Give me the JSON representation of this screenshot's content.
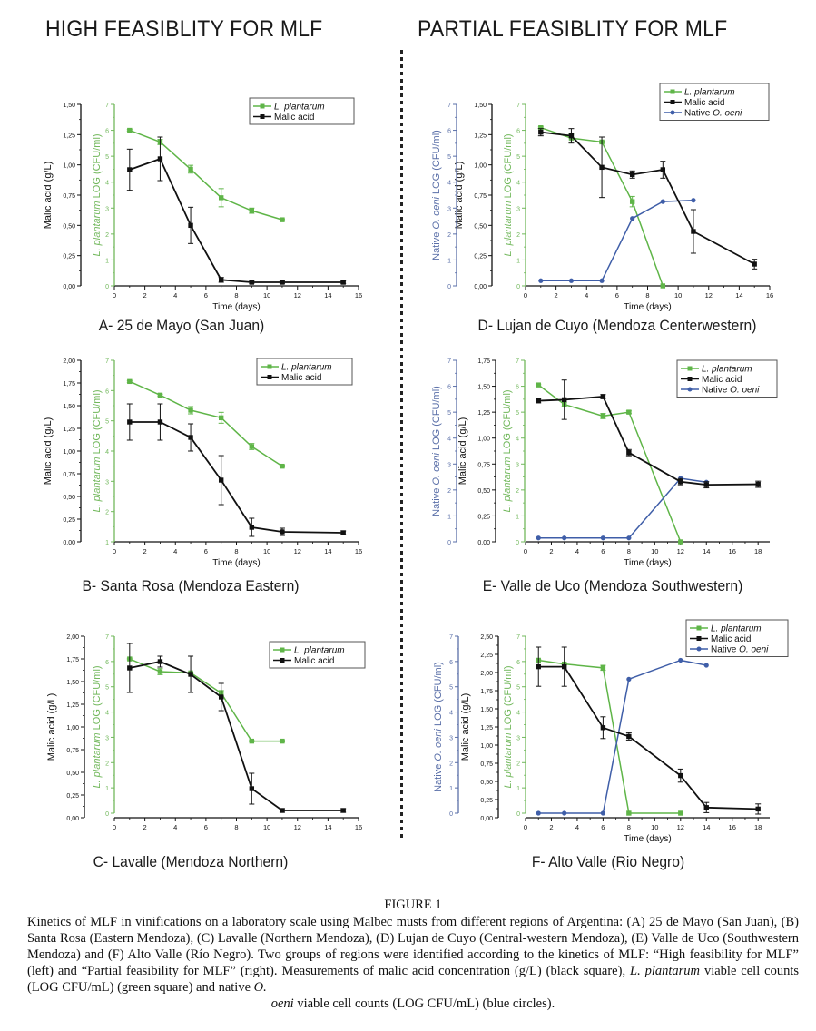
{
  "headers": {
    "left": "HIGH FEASIBLITY FOR MLF",
    "right": "PARTIAL FEASIBLITY FOR MLF"
  },
  "colors": {
    "malic": "#111111",
    "lplantarum": "#5fb548",
    "ooeni": "#3f5ea8",
    "green_axis": "#72b85c",
    "blue_axis": "#5a6fa8"
  },
  "caption": {
    "figure_label": "FIGURE 1",
    "text_1": "Kinetics of MLF in vinifications on a laboratory scale using Malbec musts from different regions of Argentina: (A) 25 de Mayo (San Juan), (B) Santa Rosa (Eastern Mendoza), (C) Lavalle (Northern Mendoza), (D) Lujan de Cuyo (Central-western Mendoza), (E) Valle de Uco (Southwestern Mendoza) and (F) Alto Valle (Río Negro). Two groups of regions were identified according to the kinetics of MLF: “High feasibility for MLF” (left) and “Partial feasibility for MLF” (right). Measurements of malic acid concentration (g/L) (black square), ",
    "text_italic_1": "L. plantarum",
    "text_2": " viable cell counts (LOG CFU/mL) (green square) and native ",
    "text_italic_2": "O.",
    "text_italic_3": "oeni",
    "text_3": " viable cell counts (LOG CFU/mL) (blue circles)."
  },
  "chart_data": [
    {
      "id": "A",
      "type": "line",
      "group": "High feasibility",
      "title": "A- 25 de Mayo (San Juan)",
      "xlabel": "Time (days)",
      "xlim": [
        0,
        16
      ],
      "xticks": [
        0,
        2,
        4,
        6,
        8,
        10,
        12,
        14,
        16
      ],
      "y_malic": {
        "label": "Malic acid (g/L)",
        "lim": [
          0,
          1.5
        ],
        "ticks": [
          "0,00",
          "0,25",
          "0,50",
          "0,75",
          "1,00",
          "1,25",
          "1,50"
        ]
      },
      "y_lp": {
        "label_italic": "L. plantarum",
        "label_rest": " LOG (CFU/ml)",
        "lim": [
          0,
          7
        ],
        "ticks": [
          "0",
          "1",
          "2",
          "3",
          "4",
          "5",
          "6",
          "7"
        ]
      },
      "legend": [
        "L. plantarum",
        "Malic acid"
      ],
      "legend_position": "top-right",
      "series": [
        {
          "name": "L. plantarum",
          "axis": "lp",
          "x": [
            1,
            3,
            5,
            7,
            9,
            11
          ],
          "y": [
            6.0,
            5.55,
            4.5,
            3.4,
            2.9,
            2.55
          ],
          "err": [
            0.03,
            0.1,
            0.15,
            0.35,
            0.1,
            0.03
          ]
        },
        {
          "name": "Malic acid",
          "axis": "malic",
          "x": [
            1,
            3,
            5,
            7,
            9,
            11,
            15
          ],
          "y": [
            0.96,
            1.05,
            0.5,
            0.05,
            0.03,
            0.03,
            0.03
          ],
          "err": [
            0.17,
            0.18,
            0.15,
            0.02,
            0.01,
            0.01,
            0.01
          ]
        }
      ]
    },
    {
      "id": "B",
      "type": "line",
      "group": "High feasibility",
      "title": "B- Santa Rosa (Mendoza Eastern)",
      "xlabel": "Time (days)",
      "xlim": [
        0,
        16
      ],
      "xticks": [
        0,
        2,
        4,
        6,
        8,
        10,
        12,
        14,
        16
      ],
      "y_malic": {
        "label": "Malic acid (g/L)",
        "lim": [
          0,
          2.0
        ],
        "ticks": [
          "0,00",
          "0,25",
          "0,50",
          "0,75",
          "1,00",
          "1,25",
          "1,50",
          "1,75",
          "2,00"
        ]
      },
      "y_lp": {
        "label_italic": "L. plantarum",
        "label_rest": " LOG (CFU/ml)",
        "lim": [
          1,
          7
        ],
        "ticks": [
          "1",
          "2",
          "3",
          "4",
          "5",
          "6",
          "7"
        ]
      },
      "legend": [
        "L. plantarum",
        "Malic acid"
      ],
      "legend_position": "top-right",
      "series": [
        {
          "name": "L. plantarum",
          "axis": "lp",
          "x": [
            1,
            3,
            5,
            7,
            9,
            11
          ],
          "y": [
            6.3,
            5.85,
            5.35,
            5.1,
            4.15,
            3.5
          ],
          "err": [
            0.03,
            0.03,
            0.12,
            0.18,
            0.1,
            0.03
          ]
        },
        {
          "name": "Malic acid",
          "axis": "malic",
          "x": [
            1,
            3,
            5,
            7,
            9,
            11,
            15
          ],
          "y": [
            1.32,
            1.32,
            1.15,
            0.68,
            0.16,
            0.11,
            0.1
          ],
          "err": [
            0.2,
            0.2,
            0.15,
            0.27,
            0.1,
            0.04,
            0.02
          ]
        }
      ]
    },
    {
      "id": "C",
      "type": "line",
      "group": "High feasibility",
      "title": "C- Lavalle (Mendoza Northern)",
      "xlabel": "",
      "xlim": [
        0,
        16
      ],
      "xticks": [
        0,
        2,
        4,
        6,
        8,
        10,
        12,
        14,
        16
      ],
      "y_malic": {
        "label": "Malic acid (g/L)",
        "lim": [
          0,
          2.0
        ],
        "ticks": [
          "0,00",
          "0,25",
          "0,50",
          "0,75",
          "1,00",
          "1,25",
          "1,50",
          "1,75",
          "2,00"
        ]
      },
      "y_lp": {
        "label_italic": "L. plantarum",
        "label_rest": " LOG (CFU/ml)",
        "lim": [
          0,
          7
        ],
        "ticks": [
          "0",
          "1",
          "2",
          "3",
          "4",
          "5",
          "6",
          "7"
        ]
      },
      "legend": [
        "L. plantarum",
        "Malic acid"
      ],
      "legend_position": "top-right",
      "series": [
        {
          "name": "L. plantarum",
          "axis": "lp",
          "x": [
            1,
            3,
            5,
            7,
            9,
            11
          ],
          "y": [
            6.1,
            5.6,
            5.55,
            4.75,
            2.85,
            2.85
          ],
          "err": [
            0.03,
            0.12,
            0.03,
            0.1,
            0.03,
            0.03
          ]
        },
        {
          "name": "Malic acid",
          "axis": "malic",
          "x": [
            1,
            3,
            5,
            7,
            9,
            11,
            15
          ],
          "y": [
            1.65,
            1.72,
            1.58,
            1.33,
            0.32,
            0.08,
            0.08
          ],
          "err": [
            0.27,
            0.06,
            0.2,
            0.15,
            0.17,
            0.02,
            0.02
          ]
        }
      ]
    },
    {
      "id": "D",
      "type": "line",
      "group": "Partial feasibility",
      "title": "D- Lujan de Cuyo (Mendoza Centerwestern)",
      "xlabel": "Time (days)",
      "xlim": [
        0,
        16
      ],
      "xticks": [
        0,
        2,
        4,
        6,
        8,
        10,
        12,
        14,
        16
      ],
      "y_oo": {
        "label_pre": "Native ",
        "label_italic": "O. oeni",
        "label_rest": " LOG (CFU/ml)",
        "lim": [
          0,
          7
        ],
        "ticks": [
          "0",
          "1",
          "2",
          "3",
          "4",
          "5",
          "6",
          "7"
        ]
      },
      "y_malic": {
        "label": "Malic acid (g/L)",
        "lim": [
          0,
          1.5
        ],
        "ticks": [
          "0,00",
          "0,25",
          "0,50",
          "0,75",
          "1,00",
          "1,25",
          "1,50"
        ]
      },
      "y_lp": {
        "label_italic": "L. plantarum",
        "label_rest": " LOG (CFU/ml)",
        "lim": [
          0,
          7
        ],
        "ticks": [
          "0",
          "1",
          "2",
          "3",
          "4",
          "5",
          "6",
          "7"
        ]
      },
      "legend": [
        "L. plantarum",
        "Malic acid",
        "Native O. oeni"
      ],
      "legend_position": "top-right",
      "series": [
        {
          "name": "L. plantarum",
          "axis": "lp",
          "x": [
            1,
            3,
            5,
            7,
            9
          ],
          "y": [
            6.1,
            5.7,
            5.55,
            3.25,
            0
          ],
          "err": [
            0.03,
            0.15,
            0.03,
            0.2,
            0
          ]
        },
        {
          "name": "Malic acid",
          "axis": "malic",
          "x": [
            1,
            3,
            5,
            7,
            9,
            11,
            15
          ],
          "y": [
            1.27,
            1.24,
            0.98,
            0.92,
            0.96,
            0.45,
            0.18
          ],
          "err": [
            0.03,
            0.06,
            0.25,
            0.03,
            0.07,
            0.18,
            0.04
          ]
        },
        {
          "name": "Native O. oeni",
          "axis": "oo",
          "x": [
            1,
            3,
            5,
            7,
            9,
            11
          ],
          "y": [
            0.2,
            0.2,
            0.2,
            2.6,
            3.25,
            3.3
          ],
          "err": [
            0,
            0,
            0,
            0,
            0,
            0
          ]
        }
      ]
    },
    {
      "id": "E",
      "type": "line",
      "group": "Partial feasibility",
      "title": "E- Valle de Uco (Mendoza Southwestern)",
      "xlabel": "Time (days)",
      "xlim": [
        0,
        19
      ],
      "xticks": [
        0,
        2,
        4,
        6,
        8,
        10,
        12,
        14,
        16,
        18
      ],
      "y_oo": {
        "label_pre": "Native ",
        "label_italic": "O. oeni",
        "label_rest": " LOG (CFU/ml)",
        "lim": [
          0,
          7
        ],
        "ticks": [
          "0",
          "1",
          "2",
          "3",
          "4",
          "5",
          "6",
          "7"
        ]
      },
      "y_malic": {
        "label": "Malic acid (g/L)",
        "lim": [
          0,
          1.75
        ],
        "ticks": [
          "0,00",
          "0,25",
          "0,50",
          "0,75",
          "1,00",
          "1,25",
          "1,50",
          "1,75"
        ]
      },
      "y_lp": {
        "label_italic": "L. plantarum",
        "label_rest": " LOG (CFU/ml)",
        "lim": [
          0,
          7
        ],
        "ticks": [
          "0",
          "1",
          "2",
          "3",
          "4",
          "5",
          "6",
          "7"
        ]
      },
      "legend": [
        "L. plantarum",
        "Malic acid",
        "Native O. oeni"
      ],
      "legend_position": "top-right",
      "series": [
        {
          "name": "L. plantarum",
          "axis": "lp",
          "x": [
            1,
            3,
            6,
            8,
            12
          ],
          "y": [
            6.05,
            5.3,
            4.85,
            5.0,
            0
          ],
          "err": [
            0.03,
            0.08,
            0.1,
            0.05,
            0
          ]
        },
        {
          "name": "Malic acid",
          "axis": "malic",
          "x": [
            1,
            3,
            6,
            8,
            12,
            14,
            18
          ],
          "y": [
            1.36,
            1.37,
            1.4,
            0.86,
            0.58,
            0.55,
            0.555
          ],
          "err": [
            0.02,
            0.19,
            0.02,
            0.03,
            0.03,
            0.03,
            0.03
          ]
        },
        {
          "name": "Native O. oeni",
          "axis": "oo",
          "x": [
            1,
            3,
            6,
            8,
            12,
            14
          ],
          "y": [
            0.15,
            0.15,
            0.15,
            0.15,
            2.45,
            2.3
          ],
          "err": [
            0,
            0,
            0,
            0,
            0,
            0
          ]
        }
      ]
    },
    {
      "id": "F",
      "type": "line",
      "group": "Partial feasibility",
      "title": "F- Alto Valle (Rio Negro)",
      "xlabel": "Time (days)",
      "xlim": [
        0,
        19
      ],
      "xticks": [
        0,
        2,
        4,
        6,
        8,
        10,
        12,
        14,
        16,
        18
      ],
      "y_oo": {
        "label_pre": "Native ",
        "label_italic": "O. oeni",
        "label_rest": " LOG (CFU/ml)",
        "lim": [
          0,
          7
        ],
        "ticks": [
          "0",
          "1",
          "2",
          "3",
          "4",
          "5",
          "6",
          "7"
        ]
      },
      "y_malic": {
        "label": "Malic acid (g/L)",
        "lim": [
          0,
          2.5
        ],
        "ticks": [
          "0,00",
          "0,25",
          "0,50",
          "0,75",
          "1,00",
          "1,25",
          "1,50",
          "1,75",
          "2,00",
          "2,25",
          "2,50"
        ]
      },
      "y_lp": {
        "label_italic": "L. plantarum",
        "label_rest": " LOG (CFU/ml)",
        "lim": [
          0,
          7
        ],
        "ticks": [
          "0",
          "1",
          "2",
          "3",
          "4",
          "5",
          "6",
          "7"
        ]
      },
      "legend": [
        "L. plantarum",
        "Malic acid",
        "Native O. oeni"
      ],
      "legend_position": "top-right",
      "series": [
        {
          "name": "L. plantarum",
          "axis": "lp",
          "x": [
            1,
            3,
            6,
            8,
            12
          ],
          "y": [
            6.05,
            5.9,
            5.75,
            0,
            0
          ],
          "err": [
            0.03,
            0.03,
            0.1,
            0,
            0
          ]
        },
        {
          "name": "Malic acid",
          "axis": "malic",
          "x": [
            1,
            3,
            6,
            8,
            12,
            14,
            18
          ],
          "y": [
            2.08,
            2.08,
            1.24,
            1.12,
            0.58,
            0.14,
            0.12
          ],
          "err": [
            0.27,
            0.27,
            0.15,
            0.05,
            0.09,
            0.07,
            0.07
          ]
        },
        {
          "name": "Native O. oeni",
          "axis": "oo",
          "x": [
            1,
            3,
            6,
            8,
            12,
            14
          ],
          "y": [
            0,
            0,
            0,
            5.3,
            6.05,
            5.85
          ],
          "err": [
            0,
            0,
            0,
            0,
            0,
            0
          ]
        }
      ]
    }
  ]
}
